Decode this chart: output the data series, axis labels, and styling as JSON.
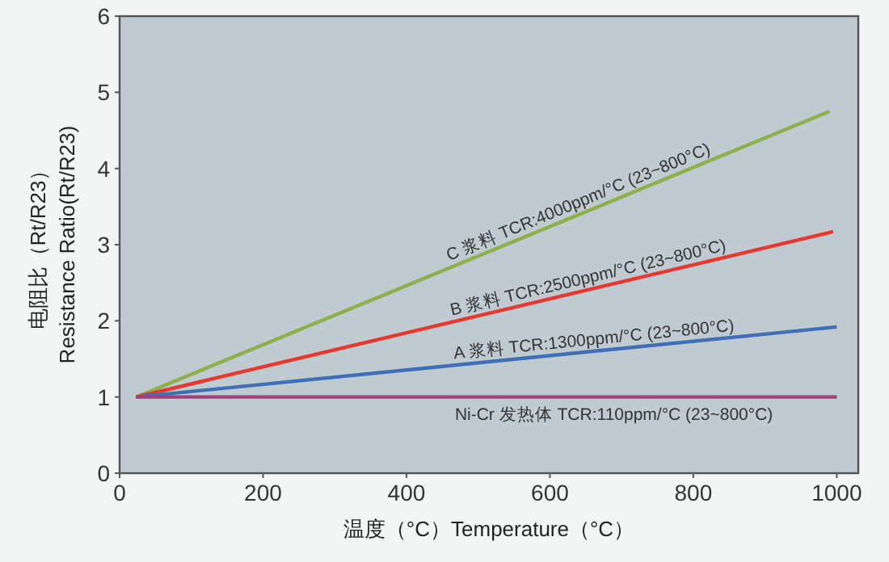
{
  "chart_data": {
    "type": "line",
    "xlabel": "温度（°C）Temperature（°C）",
    "ylabel": "电阻比（Rt/R23）\nResistance Ratio(Rt/R23)",
    "xlim": [
      0,
      1030
    ],
    "ylim": [
      0,
      6
    ],
    "xticks": [
      0,
      200,
      400,
      600,
      800,
      1000
    ],
    "yticks": [
      0,
      1,
      2,
      3,
      4,
      5,
      6
    ],
    "grid": false,
    "legend": false,
    "marker": "none",
    "line_style": "solid",
    "series": [
      {
        "name": "C 浆料 TCR:4000ppm/°C (23~800°C)",
        "color": "#8db04a",
        "x": [
          23,
          990
        ],
        "values": [
          1,
          4.75
        ]
      },
      {
        "name": "B 浆料 TCR:2500ppm/°C (23~800°C)",
        "color": "#e6382e",
        "x": [
          23,
          995
        ],
        "values": [
          1,
          3.17
        ]
      },
      {
        "name": "A 浆料 TCR:1300ppm/°C (23~800°C)",
        "color": "#3f6fb5",
        "x": [
          23,
          1000
        ],
        "values": [
          1,
          1.92
        ]
      },
      {
        "name": "Ni-Cr 发热体 TCR:110ppm/°C (23~800°C)",
        "color": "#a0407a",
        "x": [
          23,
          1000
        ],
        "values": [
          1,
          1
        ]
      }
    ]
  }
}
